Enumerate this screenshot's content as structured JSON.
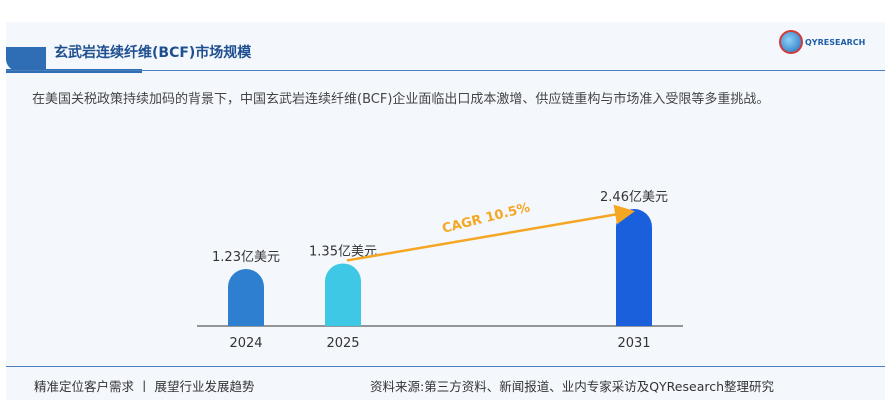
{
  "header": {
    "title": "玄武岩连续纤维(BCF)市场规模",
    "logo": "QYRESEARCH"
  },
  "description": "在美国关税政策持续加码的背景下，中国玄武岩连续纤维(BCF)企业面临出口成本激增、供应链重构与市场准入受限等多重挑战。",
  "footer": {
    "left": "精准定位客户需求 丨 展望行业发展趋势",
    "right": "资料来源:第三方资料、新闻报道、业内专家采访及QYResearch整理研究"
  },
  "chart_data": {
    "type": "bar",
    "categories": [
      "2024",
      "2025",
      "2031"
    ],
    "values": [
      1.23,
      1.35,
      2.46
    ],
    "data_labels": [
      "1.23亿美元",
      "1.35亿美元",
      "2.46亿美元"
    ],
    "annotation": "CAGR 10.5%",
    "colors": [
      "#2e7fd0",
      "#3ec8e6",
      "#1a5fdc"
    ],
    "arrow_color": "#f5a623"
  }
}
